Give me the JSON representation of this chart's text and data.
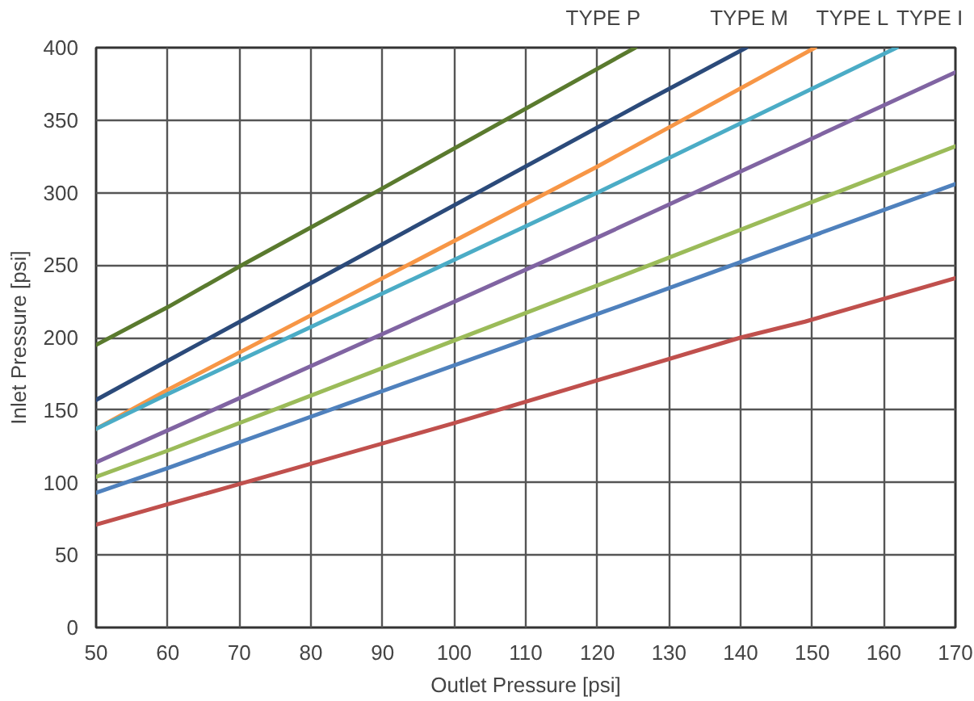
{
  "chart_data": {
    "type": "line",
    "xlabel": "Outlet Pressure [psi]",
    "ylabel": "Inlet Pressure [psi]",
    "xlim": [
      50,
      170
    ],
    "ylim": [
      0,
      400
    ],
    "xticks": [
      50,
      60,
      70,
      80,
      90,
      100,
      110,
      120,
      130,
      140,
      150,
      160,
      170
    ],
    "yticks": [
      0,
      50,
      100,
      150,
      200,
      250,
      300,
      350,
      400
    ],
    "grid": true,
    "marker": "none",
    "line_style": "solid",
    "annotations": [
      "TYPE P",
      "TYPE M",
      "TYPE L",
      "TYPE I"
    ],
    "series": [
      {
        "color": "#5a7a2e",
        "x": [
          50,
          60,
          70,
          90,
          125.3
        ],
        "values": [
          195,
          221,
          249,
          303,
          400
        ]
      },
      {
        "color": "#2b4a7a",
        "x": [
          50,
          60,
          126,
          140.8
        ],
        "values": [
          157,
          184,
          361,
          400
        ]
      },
      {
        "color": "#f79646",
        "x": [
          50,
          60,
          120,
          150.4
        ],
        "values": [
          137,
          164,
          318,
          400
        ]
      },
      {
        "color": "#4bacc6",
        "x": [
          50,
          60,
          120,
          161.8
        ],
        "values": [
          137,
          161,
          300,
          400
        ]
      },
      {
        "color": "#8064a2",
        "x": [
          50,
          60,
          120,
          170
        ],
        "values": [
          114,
          136,
          269,
          383
        ]
      },
      {
        "color": "#9bbb59",
        "x": [
          50,
          60,
          120,
          170
        ],
        "values": [
          104,
          122,
          236,
          332
        ]
      },
      {
        "color": "#4f81bd",
        "x": [
          50,
          60,
          121,
          170
        ],
        "values": [
          93,
          110,
          218,
          306
        ]
      },
      {
        "color": "#c0504d",
        "x": [
          50,
          60,
          70,
          100,
          140,
          149,
          170
        ],
        "values": [
          71,
          85,
          99,
          141,
          200,
          211,
          241
        ]
      }
    ]
  }
}
